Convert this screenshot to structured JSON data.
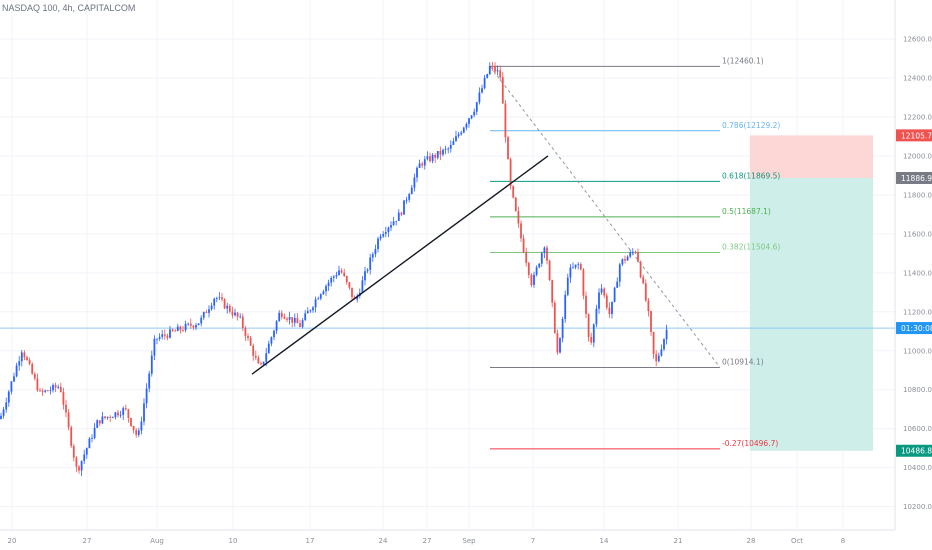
{
  "chart_title": "NASDAQ 100, 4h, CAPITALCOM",
  "colors": {
    "up": "#2962ff",
    "down": "#ef5350",
    "grid": "#f0f3fa",
    "price_line": "#90caf9",
    "stop_zone": "#fcd7d6",
    "target_zone": "#cdeee9",
    "stop_badge": "#ef5350",
    "entry_badge": "#787b86",
    "target_badge": "#089981",
    "countdown_badge": "#2196f3"
  },
  "chart_data": {
    "type": "candlestick",
    "y_range": [
      10080,
      12780
    ],
    "y_ticks": [
      10200,
      10400,
      10600,
      10800,
      11000,
      11200,
      11400,
      11600,
      11800,
      12000,
      12200,
      12400,
      12600
    ],
    "y_tick_labels": [
      "10200.0",
      "10400.0",
      "10600.0",
      "10800.0",
      "11000.0",
      "11200.0",
      "11400.0",
      "11600.0",
      "11800.0",
      "12000.0",
      "12200.0",
      "12400.0",
      "12600.0"
    ],
    "x_tick_labels": [
      "20",
      "27",
      "Aug",
      "10",
      "17",
      "24",
      "27",
      "Sep",
      "7",
      "14",
      "21",
      "28",
      "Oct",
      "8"
    ],
    "path": [
      [
        0,
        10650
      ],
      [
        22,
        11010
      ],
      [
        40,
        10780
      ],
      [
        60,
        10820
      ],
      [
        77,
        10380
      ],
      [
        98,
        10640
      ],
      [
        125,
        10700
      ],
      [
        138,
        10550
      ],
      [
        155,
        11060
      ],
      [
        175,
        11100
      ],
      [
        200,
        11150
      ],
      [
        215,
        11280
      ],
      [
        240,
        11160
      ],
      [
        260,
        10900
      ],
      [
        280,
        11200
      ],
      [
        300,
        11130
      ],
      [
        320,
        11300
      ],
      [
        340,
        11420
      ],
      [
        355,
        11250
      ],
      [
        380,
        11600
      ],
      [
        400,
        11700
      ],
      [
        420,
        11960
      ],
      [
        450,
        12040
      ],
      [
        475,
        12250
      ],
      [
        490,
        12460
      ],
      [
        500,
        12420
      ],
      [
        510,
        11850
      ],
      [
        520,
        11600
      ],
      [
        532,
        11340
      ],
      [
        545,
        11560
      ],
      [
        558,
        10960
      ],
      [
        568,
        11400
      ],
      [
        580,
        11450
      ],
      [
        590,
        11000
      ],
      [
        600,
        11350
      ],
      [
        610,
        11180
      ],
      [
        620,
        11450
      ],
      [
        636,
        11520
      ],
      [
        648,
        11200
      ],
      [
        655,
        10920
      ],
      [
        668,
        11130
      ]
    ],
    "current_price": 11116.5,
    "trendline": {
      "from": [
        10880,
        12000
      ],
      "to": [
        252,
        548
      ]
    },
    "fibonacci": [
      {
        "ratio": 1,
        "price": 12460.1,
        "label": "1(12460.1)",
        "color": "#787b86"
      },
      {
        "ratio": 0.786,
        "price": 12129.2,
        "label": "0.786(12129.2)",
        "color": "#64b5f6"
      },
      {
        "ratio": 0.618,
        "price": 11869.5,
        "label": "0.618(11869.5)",
        "color": "#089981"
      },
      {
        "ratio": 0.5,
        "price": 11687.1,
        "label": "0.5(11687.1)",
        "color": "#4caf50"
      },
      {
        "ratio": 0.382,
        "price": 11504.6,
        "label": "0.382(11504.6)",
        "color": "#81c784"
      },
      {
        "ratio": 0,
        "price": 10914.1,
        "label": "0(10914.1)",
        "color": "#787b86"
      },
      {
        "ratio": -0.27,
        "price": 10496.7,
        "label": "-0.27(10496.7)",
        "color": "#f23645"
      }
    ],
    "fib_diagonal_from": 12460.1,
    "fib_diagonal_to": 10914.1,
    "position": {
      "stop": 12105.7,
      "entry": 11886.9,
      "target": 10486.8
    },
    "price_badges": [
      {
        "label": "12105.7",
        "price": 12105.7,
        "kind": "stop_badge"
      },
      {
        "label": "11886.9",
        "price": 11886.9,
        "kind": "entry_badge"
      },
      {
        "label": "01:30:08",
        "price": 11116.5,
        "kind": "countdown_badge"
      },
      {
        "label": "10486.8",
        "price": 10486.8,
        "kind": "target_badge"
      }
    ]
  }
}
